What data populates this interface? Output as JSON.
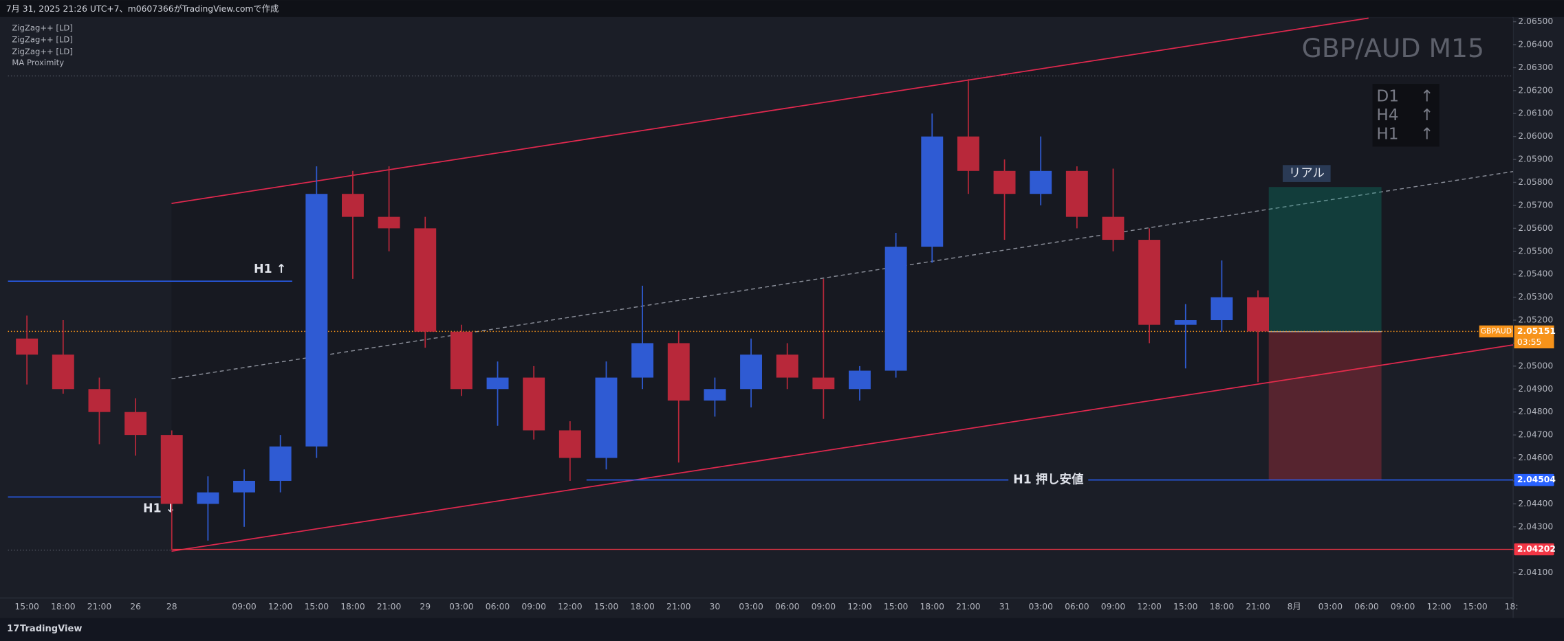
{
  "header": "7月 31, 2025 21:26 UTC+7、m0607366がTradingView.comで作成",
  "indicators": [
    "ZigZag++ [LD]",
    "ZigZag++ [LD]",
    "ZigZag++ [LD]",
    "MA Proximity"
  ],
  "footer": "TradingView",
  "chart_data": {
    "type": "candlestick",
    "title": "GBP/AUD M15",
    "categories": [
      "15:00",
      "18:00",
      "21:00",
      "26",
      "28",
      null,
      "09:00",
      "12:00",
      "15:00",
      "18:00",
      "21:00",
      "29",
      "03:00",
      "06:00",
      "09:00",
      "12:00",
      "15:00",
      "18:00",
      "21:00",
      "30",
      "03:00",
      "06:00",
      "09:00",
      "12:00",
      "15:00",
      "18:00",
      "21:00",
      "31",
      "03:00",
      "06:00",
      "09:00",
      "12:00",
      "15:00",
      "18:00",
      "21:00",
      "8月",
      "03:00",
      "06:00",
      "09:00",
      "12:00",
      "15:00",
      "18:"
    ],
    "open": [
      2.0512,
      2.0505,
      2.049,
      2.048,
      2.047,
      2.044,
      2.0445,
      2.045,
      2.0465,
      2.0575,
      2.0565,
      2.056,
      2.0515,
      2.049,
      2.0495,
      2.0472,
      2.046,
      2.0495,
      2.051,
      2.0485,
      2.049,
      2.0505,
      2.0495,
      2.049,
      2.0498,
      2.0552,
      2.06,
      2.0585,
      2.0575,
      2.0585,
      2.0565,
      2.0555,
      2.0518,
      2.052,
      2.053,
      null,
      null,
      null,
      null,
      null,
      null,
      null
    ],
    "high": [
      2.0522,
      2.052,
      2.0495,
      2.0486,
      2.0472,
      2.0452,
      2.0455,
      2.047,
      2.0587,
      2.0585,
      2.0587,
      2.0565,
      2.0518,
      2.0502,
      2.05,
      2.0476,
      2.0502,
      2.0535,
      2.0515,
      2.0495,
      2.0512,
      2.051,
      2.0538,
      2.05,
      2.0558,
      2.061,
      2.0625,
      2.059,
      2.06,
      2.0587,
      2.0586,
      2.056,
      2.0527,
      2.0546,
      2.0533,
      null,
      null,
      null,
      null,
      null,
      null,
      null
    ],
    "low": [
      2.0492,
      2.0488,
      2.0466,
      2.0461,
      2.042,
      2.0424,
      2.043,
      2.0445,
      2.046,
      2.0538,
      2.055,
      2.0508,
      2.0487,
      2.0474,
      2.0468,
      2.045,
      2.0455,
      2.049,
      2.0458,
      2.0478,
      2.0482,
      2.049,
      2.0477,
      2.0485,
      2.0495,
      2.0545,
      2.0575,
      2.0555,
      2.057,
      2.056,
      2.055,
      2.051,
      2.0499,
      2.0515,
      2.0493,
      null,
      null,
      null,
      null,
      null,
      null,
      null
    ],
    "close": [
      2.0505,
      2.049,
      2.048,
      2.047,
      2.044,
      2.0445,
      2.045,
      2.0465,
      2.0575,
      2.0565,
      2.056,
      2.0515,
      2.049,
      2.0495,
      2.0472,
      2.046,
      2.0495,
      2.051,
      2.0485,
      2.049,
      2.0505,
      2.0495,
      2.049,
      2.0498,
      2.0552,
      2.06,
      2.0585,
      2.0575,
      2.0585,
      2.0565,
      2.0555,
      2.0518,
      2.052,
      2.053,
      2.05151,
      null,
      null,
      null,
      null,
      null,
      null,
      null
    ],
    "up_color": "#2f5bd3",
    "down_color": "#b8283a",
    "ylim": [
      2.0399,
      2.0652
    ],
    "yticks": [
      {
        "value": 2.041,
        "label": "2.04100"
      },
      {
        "value": 2.042,
        "label": "2.04200"
      },
      {
        "value": 2.043,
        "label": "2.04300"
      },
      {
        "value": 2.044,
        "label": "2.04400"
      },
      {
        "value": 2.045,
        "label": "2.04500"
      },
      {
        "value": 2.046,
        "label": "2.04600"
      },
      {
        "value": 2.047,
        "label": "2.04700"
      },
      {
        "value": 2.048,
        "label": "2.04800"
      },
      {
        "value": 2.049,
        "label": "2.04900"
      },
      {
        "value": 2.05,
        "label": "2.05000"
      },
      {
        "value": 2.051,
        "label": "2.05100"
      },
      {
        "value": 2.052,
        "label": "2.05200"
      },
      {
        "value": 2.053,
        "label": "2.05300"
      },
      {
        "value": 2.054,
        "label": "2.05400"
      },
      {
        "value": 2.055,
        "label": "2.05500"
      },
      {
        "value": 2.056,
        "label": "2.05600"
      },
      {
        "value": 2.057,
        "label": "2.05700"
      },
      {
        "value": 2.058,
        "label": "2.05800"
      },
      {
        "value": 2.059,
        "label": "2.05900"
      },
      {
        "value": 2.06,
        "label": "2.06000"
      },
      {
        "value": 2.061,
        "label": "2.06100"
      },
      {
        "value": 2.062,
        "label": "2.06200"
      },
      {
        "value": 2.063,
        "label": "2.06300"
      },
      {
        "value": 2.064,
        "label": "2.06400"
      },
      {
        "value": 2.065,
        "label": "2.06500"
      }
    ],
    "grid": false,
    "symbol": "GBPAUD",
    "last_price": 2.05151,
    "countdown": "03:55",
    "price_color": "#f7931a",
    "levels": [
      {
        "value": 2.04504,
        "color": "#2962ff",
        "label": "H1 押し安値",
        "axis_tag": true
      },
      {
        "value": 2.04202,
        "color": "#f23645",
        "axis_tag": true
      },
      {
        "value": 2.0537,
        "color": "#2962ff",
        "label": "H1 ↑",
        "axis_tag": false
      },
      {
        "value": 2.0443,
        "color": "#2962ff",
        "label": "H1 ↓",
        "axis_tag": false
      }
    ],
    "position": {
      "label": "リアル",
      "entry": 2.0515,
      "target": 2.0578,
      "stop": 2.04504
    },
    "trend": [
      {
        "timeframe": "D1",
        "arrow": "↑"
      },
      {
        "timeframe": "H4",
        "arrow": "↑"
      },
      {
        "timeframe": "H1",
        "arrow": "↑"
      }
    ]
  }
}
